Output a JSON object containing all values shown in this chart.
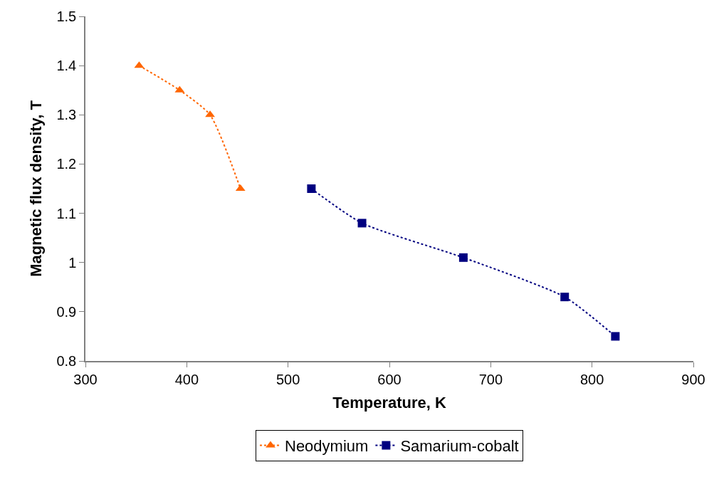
{
  "chart_data": {
    "type": "line",
    "xlabel": "Temperature, K",
    "ylabel": "Magnetic flux density, T",
    "xlim": [
      300,
      900
    ],
    "xticks": [
      300,
      400,
      500,
      600,
      700,
      800,
      900
    ],
    "ylim": [
      0.8,
      1.5
    ],
    "yticks": [
      0.8,
      0.9,
      1,
      1.1,
      1.2,
      1.3,
      1.4,
      1.5
    ],
    "legend": "bottom",
    "line_style": "dotted",
    "series": [
      {
        "name": "Neodymium",
        "color": "#ff6600",
        "marker": "triangle",
        "x": [
          353,
          393,
          423,
          453
        ],
        "values": [
          1.4,
          1.35,
          1.3,
          1.15
        ]
      },
      {
        "name": "Samarium-cobalt",
        "color": "#000080",
        "marker": "square",
        "x": [
          523,
          573,
          673,
          773,
          823
        ],
        "values": [
          1.15,
          1.08,
          1.01,
          0.93,
          0.85
        ]
      }
    ]
  }
}
